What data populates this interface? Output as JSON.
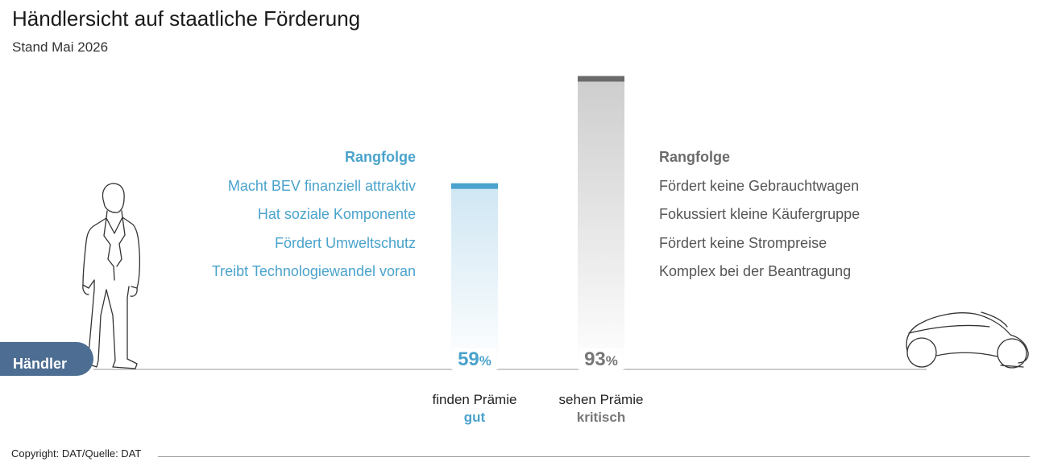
{
  "header": {
    "title": "Händlersicht auf staatliche Förderung",
    "subtitle": "Stand Mai 2026"
  },
  "chart_data": {
    "type": "bar",
    "categories": [
      "finden Prämie gut",
      "sehen Prämie kritisch"
    ],
    "values": [
      59,
      93
    ],
    "unit": "%",
    "ylim": [
      0,
      100
    ],
    "grid": false,
    "bars": [
      {
        "value": 59,
        "value_label": "59",
        "unit": "%",
        "caption": "finden Prämie",
        "caption_emphasis": "gut",
        "color": "#4aa3cc"
      },
      {
        "value": 93,
        "value_label": "93",
        "unit": "%",
        "caption": "sehen Prämie",
        "caption_emphasis": "kritisch",
        "color": "#6b6b6b"
      }
    ]
  },
  "rankings": {
    "positive": {
      "heading": "Rangfolge",
      "items": [
        "Macht BEV finanziell attraktiv",
        "Hat soziale Komponente",
        "Fördert Umweltschutz",
        "Treibt Technologiewandel voran"
      ],
      "color": "#4aa3cc"
    },
    "negative": {
      "heading": "Rangfolge",
      "items": [
        "Fördert keine Gebrauchtwagen",
        "Fokussiert kleine Käufergruppe",
        "Fördert keine Strompreise",
        "Komplex bei der Beantragung"
      ],
      "color": "#6b6b6b"
    }
  },
  "labels": {
    "haendler": "Händler"
  },
  "icons": [
    "person-icon",
    "car-icon"
  ],
  "footer": {
    "copyright": "Copyright: DAT/Quelle: DAT"
  }
}
